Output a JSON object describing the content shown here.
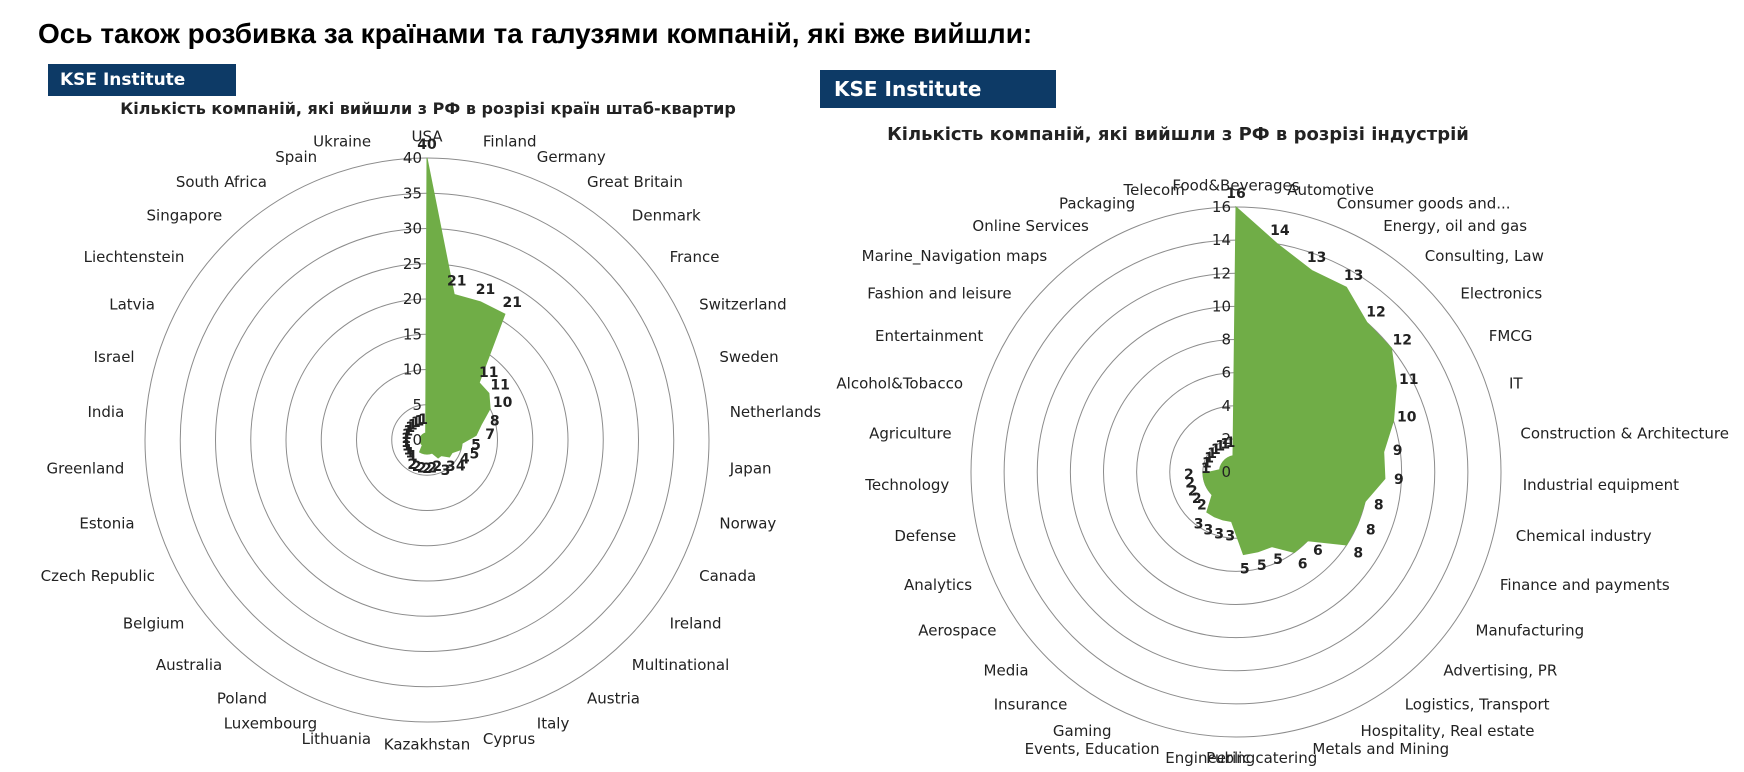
{
  "page": {
    "heading": "Ось також розбивка за країнами та галузями компаній, які вже вийшли:"
  },
  "badges": {
    "left": "KSE Institute",
    "right": "KSE Institute"
  },
  "chart_data": [
    {
      "type": "radar",
      "title": "Кількість компаній, які вийшли з РФ в розрізі країн штаб-квартир",
      "color": "#70ad47",
      "grid": true,
      "r_ticks": [
        0,
        5,
        10,
        15,
        20,
        25,
        30,
        35,
        40
      ],
      "rlim": [
        0,
        40
      ],
      "categories": [
        "USA",
        "Finland",
        "Germany",
        "Great Britain",
        "Denmark",
        "France",
        "Switzerland",
        "Sweden",
        "Netherlands",
        "Japan",
        "Norway",
        "Canada",
        "Ireland",
        "Multinational",
        "Austria",
        "Italy",
        "Cyprus",
        "Kazakhstan",
        "Lithuania",
        "Luxembourg",
        "Poland",
        "Australia",
        "Belgium",
        "Czech Republic",
        "Estonia",
        "Greenland",
        "India",
        "Israel",
        "Latvia",
        "Liechtenstein",
        "Singapore",
        "South Africa",
        "Spain",
        "Ukraine"
      ],
      "values": [
        40,
        21,
        21,
        21,
        11,
        11,
        10,
        8,
        7,
        5,
        5,
        4,
        4,
        3,
        3,
        2,
        2,
        2,
        2,
        2,
        2,
        1,
        1,
        1,
        1,
        1,
        1,
        1,
        1,
        1,
        1,
        1,
        1,
        1
      ]
    },
    {
      "type": "radar",
      "title": "Кількість компаній, які вийшли з РФ в розрізі індустрій",
      "color": "#70ad47",
      "grid": true,
      "r_ticks": [
        0,
        2,
        4,
        6,
        8,
        10,
        12,
        14,
        16
      ],
      "rlim": [
        0,
        16
      ],
      "categories": [
        "Food&Beverages",
        "Automotive",
        "Consumer goods and...",
        "Energy, oil and gas",
        "Consulting, Law",
        "Electronics",
        "FMCG",
        "IT",
        "Construction & Architecture",
        "Industrial equipment",
        "Chemical industry",
        "Finance and payments",
        "Manufacturing",
        "Advertising, PR",
        "Logistics, Transport",
        "Hospitality, Real estate",
        "Metals and Mining",
        "Public catering",
        "Engineering",
        "Events, Education",
        "Gaming",
        "Insurance",
        "Media",
        "Aerospace",
        "Analytics",
        "Defense",
        "Technology",
        "Agriculture",
        "Alcohol&Tobacco",
        "Entertainment",
        "Fashion and leisure",
        "Marine_Navigation maps",
        "Online Services",
        "Packaging",
        "Telecom"
      ],
      "values": [
        16,
        14,
        13,
        13,
        12,
        12,
        11,
        10,
        9,
        9,
        8,
        8,
        8,
        6,
        6,
        5,
        5,
        5,
        3,
        3,
        3,
        3,
        2,
        2,
        2,
        2,
        2,
        1,
        1,
        1,
        1,
        1,
        1,
        1,
        1
      ]
    }
  ]
}
